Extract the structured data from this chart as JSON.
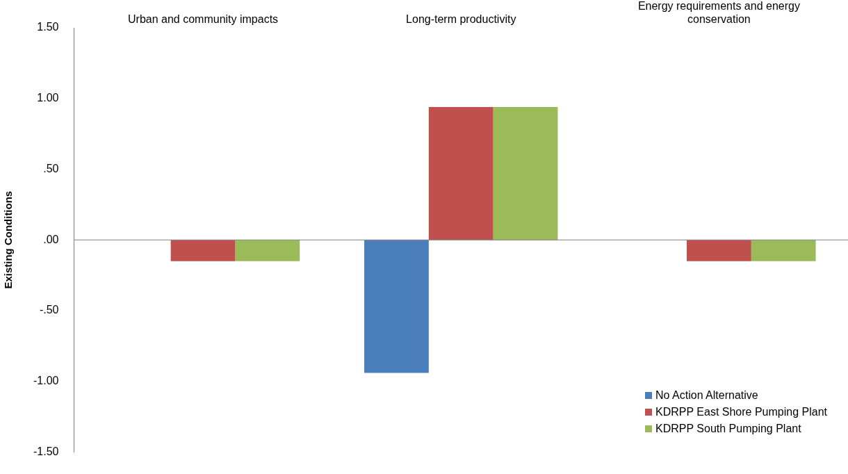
{
  "chart_data": {
    "type": "bar",
    "ylabel": "Existing Conditions",
    "categories": [
      "Urban and community impacts",
      "Long-term productivity",
      "Energy requirements and energy conservation"
    ],
    "series": [
      {
        "name": "No Action Alternative",
        "color": "#4a7ebb",
        "values": [
          0,
          -0.94,
          0
        ]
      },
      {
        "name": "KDRPP East Shore Pumping Plant",
        "color": "#c0504d",
        "values": [
          -0.15,
          0.94,
          -0.15
        ]
      },
      {
        "name": "KDRPP South Pumping Plant",
        "color": "#9bbb59",
        "values": [
          -0.15,
          0.94,
          -0.15
        ]
      }
    ],
    "ylim": [
      -1.5,
      1.5
    ],
    "yticks": [
      {
        "value": -1.5,
        "label": "-1.50"
      },
      {
        "value": -1,
        "label": "-1.00"
      },
      {
        "value": -0.5,
        "label": "-.50"
      },
      {
        "value": 0,
        "label": ".00"
      },
      {
        "value": 0.5,
        "label": ".50"
      },
      {
        "value": 1,
        "label": "1.00"
      },
      {
        "value": 1.5,
        "label": "1.50"
      }
    ],
    "grid": false,
    "ref_lines": [
      {
        "axis": "y",
        "value": 0,
        "color": "#7f7f7f"
      }
    ],
    "legend": "bottom right"
  }
}
